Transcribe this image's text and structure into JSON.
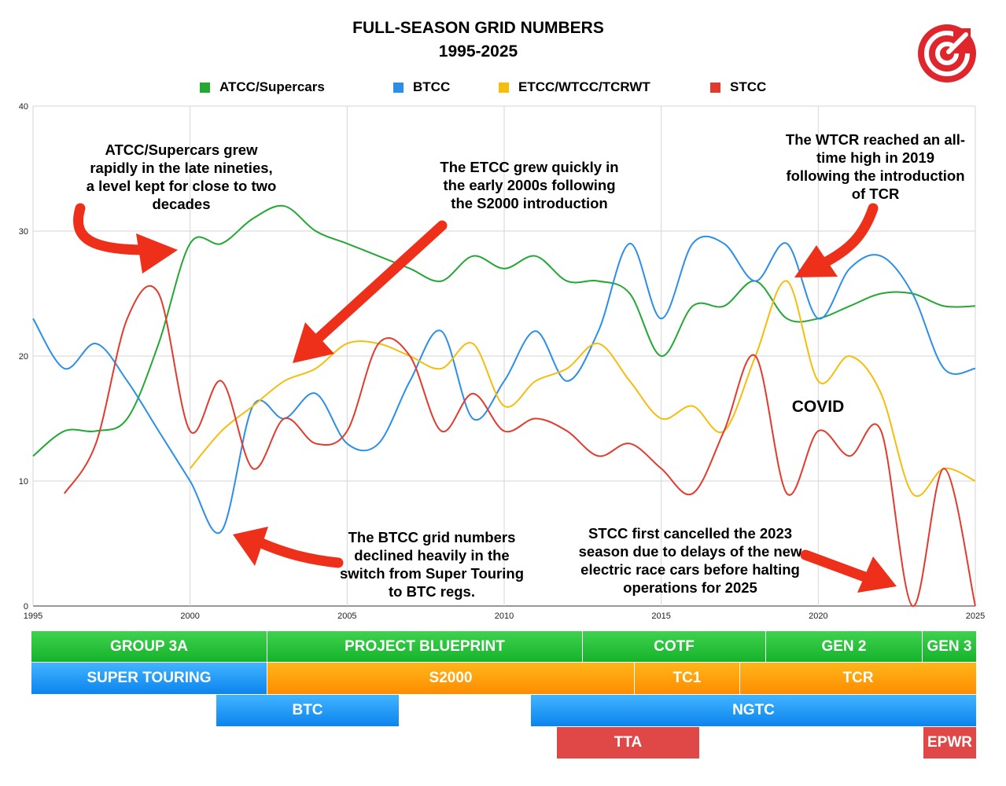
{
  "title": [
    "FULL-SEASON GRID NUMBERS",
    "1995-2025"
  ],
  "legend": [
    {
      "label": "ATCC/Supercars",
      "color": "#22a833"
    },
    {
      "label": "BTCC",
      "color": "#2b8fe8"
    },
    {
      "label": "ETCC/WTCC/TCRWT",
      "color": "#f6bd0c"
    },
    {
      "label": "STCC",
      "color": "#e23b2e"
    }
  ],
  "annotations": [
    "ATCC/Supercars grew rapidly in the late nineties, a level kept for close to two decades",
    "The ETCC grew quickly in the early 2000s following the S2000 introduction",
    "The WTCR reached an all-time high in 2019 following the introduction of TCR",
    "COVID",
    "The BTCC grid numbers declined heavily in the switch from Super Touring to BTC regs.",
    "STCC first cancelled the 2023 season due to delays of the new electric race cars before halting operations for 2025"
  ],
  "bands": [
    {
      "label": "GROUP 3A",
      "color": "green"
    },
    {
      "label": "PROJECT BLUEPRINT",
      "color": "green"
    },
    {
      "label": "COTF",
      "color": "green"
    },
    {
      "label": "GEN 2",
      "color": "green"
    },
    {
      "label": "GEN 3",
      "color": "green"
    },
    {
      "label": "SUPER TOURING",
      "color": "blue"
    },
    {
      "label": "S2000",
      "color": "orange"
    },
    {
      "label": "TC1",
      "color": "orange"
    },
    {
      "label": "TCR",
      "color": "orange"
    },
    {
      "label": "BTC",
      "color": "blue"
    },
    {
      "label": "NGTC",
      "color": "blue"
    },
    {
      "label": "TTA",
      "color": "red"
    },
    {
      "label": "EPWR",
      "color": "red"
    }
  ],
  "chart_data": {
    "type": "line",
    "x_ticks": [
      "1995",
      "2000",
      "2005",
      "2010",
      "2015",
      "2020",
      "2025"
    ],
    "y_ticks": [
      "0",
      "10",
      "20",
      "30",
      "40"
    ],
    "xlim": [
      1995,
      2025
    ],
    "ylim": [
      0,
      40
    ],
    "grid": true,
    "legend_position": "top",
    "x": [
      1995,
      1996,
      1997,
      1998,
      1999,
      2000,
      2001,
      2002,
      2003,
      2004,
      2005,
      2006,
      2007,
      2008,
      2009,
      2010,
      2011,
      2012,
      2013,
      2014,
      2015,
      2016,
      2017,
      2018,
      2019,
      2020,
      2021,
      2022,
      2023,
      2024,
      2025
    ],
    "series": [
      {
        "name": "ATCC/Supercars",
        "color": "#22a833",
        "values": [
          12,
          14,
          14,
          15,
          21,
          29,
          29,
          31,
          32,
          30,
          29,
          28,
          27,
          26,
          28,
          27,
          28,
          26,
          26,
          25,
          20,
          24,
          24,
          26,
          23,
          23,
          24,
          25,
          25,
          24,
          24
        ]
      },
      {
        "name": "BTCC",
        "color": "#2b8fe8",
        "values": [
          23,
          19,
          21,
          18,
          14,
          10,
          6,
          16,
          15,
          17,
          13,
          13,
          18,
          22,
          15,
          18,
          22,
          18,
          22,
          29,
          23,
          29,
          29,
          26,
          29,
          23,
          27,
          28,
          25,
          19,
          19
        ]
      },
      {
        "name": "ETCC/WTCC/TCRWT",
        "color": "#f6bd0c",
        "values": [
          null,
          null,
          null,
          null,
          null,
          11,
          14,
          16,
          18,
          19,
          21,
          21,
          20,
          19,
          21,
          16,
          18,
          19,
          21,
          18,
          15,
          16,
          14,
          20,
          26,
          18,
          20,
          17,
          9,
          11,
          10
        ]
      },
      {
        "name": "STCC",
        "color": "#e23b2e",
        "values": [
          null,
          9,
          13,
          23,
          25,
          14,
          18,
          11,
          15,
          13,
          14,
          21,
          20,
          14,
          17,
          14,
          15,
          14,
          12,
          13,
          11,
          9,
          14,
          20,
          9,
          14,
          12,
          14,
          0,
          11,
          0
        ]
      }
    ]
  },
  "logo_name": "logo-icon"
}
